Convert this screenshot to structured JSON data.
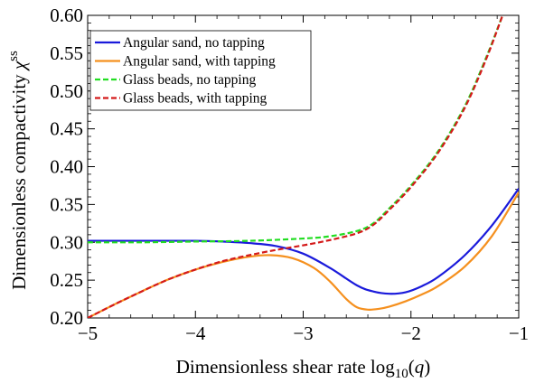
{
  "chart_data": {
    "type": "line",
    "xlabel": "Dimensionless shear rate log10(q)",
    "xlabel_parts": {
      "main": "Dimensionless shear rate log",
      "sub": "10",
      "open": "(",
      "var": "q",
      "close": ")"
    },
    "ylabel": "Dimensionless compactivity χss",
    "ylabel_parts": {
      "main": "Dimensionless compactivity ",
      "symbol": "χ",
      "sup": "ss"
    },
    "xlim": [
      -5,
      -1
    ],
    "ylim": [
      0.2,
      0.6
    ],
    "x_ticks": [
      -5,
      -4,
      -3,
      -2,
      -1
    ],
    "x_tick_labels": [
      "−5",
      "−4",
      "−3",
      "−2",
      "−1"
    ],
    "y_ticks": [
      0.2,
      0.25,
      0.3,
      0.35,
      0.4,
      0.45,
      0.5,
      0.55,
      0.6
    ],
    "y_tick_labels": [
      "0.20",
      "0.25",
      "0.30",
      "0.35",
      "0.40",
      "0.45",
      "0.50",
      "0.55",
      "0.60"
    ],
    "grid": false,
    "legend_position": "top-left",
    "series": [
      {
        "name": "Angular sand, no tapping",
        "color": "#1a1adb",
        "dash": "solid",
        "x": [
          -5.0,
          -4.5,
          -4.0,
          -3.75,
          -3.5,
          -3.25,
          -3.0,
          -2.75,
          -2.5,
          -2.35,
          -2.2,
          -2.05,
          -1.9,
          -1.75,
          -1.5,
          -1.25,
          -1.0
        ],
        "y": [
          0.302,
          0.302,
          0.302,
          0.301,
          0.299,
          0.295,
          0.285,
          0.266,
          0.243,
          0.235,
          0.232,
          0.234,
          0.242,
          0.254,
          0.283,
          0.322,
          0.371
        ]
      },
      {
        "name": "Angular sand, with tapping",
        "color": "#f5901e",
        "dash": "solid",
        "x": [
          -5.0,
          -4.75,
          -4.5,
          -4.25,
          -4.0,
          -3.75,
          -3.5,
          -3.3,
          -3.1,
          -2.9,
          -2.75,
          -2.6,
          -2.5,
          -2.4,
          -2.3,
          -2.2,
          -2.05,
          -1.9,
          -1.75,
          -1.5,
          -1.25,
          -1.0
        ],
        "y": [
          0.2,
          0.218,
          0.235,
          0.251,
          0.264,
          0.274,
          0.281,
          0.283,
          0.279,
          0.266,
          0.248,
          0.225,
          0.214,
          0.211,
          0.212,
          0.215,
          0.222,
          0.231,
          0.242,
          0.268,
          0.308,
          0.366
        ]
      },
      {
        "name": "Glass beads, no tapping",
        "color": "#22dd22",
        "dash": "dashed",
        "x": [
          -5.0,
          -4.5,
          -4.0,
          -3.5,
          -3.0,
          -2.75,
          -2.5,
          -2.35,
          -2.2,
          -2.0,
          -1.75,
          -1.5,
          -1.3,
          -1.15
        ],
        "y": [
          0.3,
          0.3,
          0.301,
          0.302,
          0.305,
          0.308,
          0.315,
          0.325,
          0.345,
          0.375,
          0.42,
          0.48,
          0.545,
          0.6
        ]
      },
      {
        "name": "Glass beads, with tapping",
        "color": "#d41a1a",
        "dash": "dashed",
        "x": [
          -5.0,
          -4.75,
          -4.5,
          -4.25,
          -4.0,
          -3.75,
          -3.5,
          -3.25,
          -3.0,
          -2.75,
          -2.5,
          -2.35,
          -2.2,
          -2.0,
          -1.75,
          -1.5,
          -1.3,
          -1.15
        ],
        "y": [
          0.2,
          0.218,
          0.235,
          0.251,
          0.264,
          0.275,
          0.283,
          0.29,
          0.296,
          0.303,
          0.312,
          0.323,
          0.343,
          0.373,
          0.418,
          0.478,
          0.543,
          0.6
        ]
      }
    ]
  }
}
